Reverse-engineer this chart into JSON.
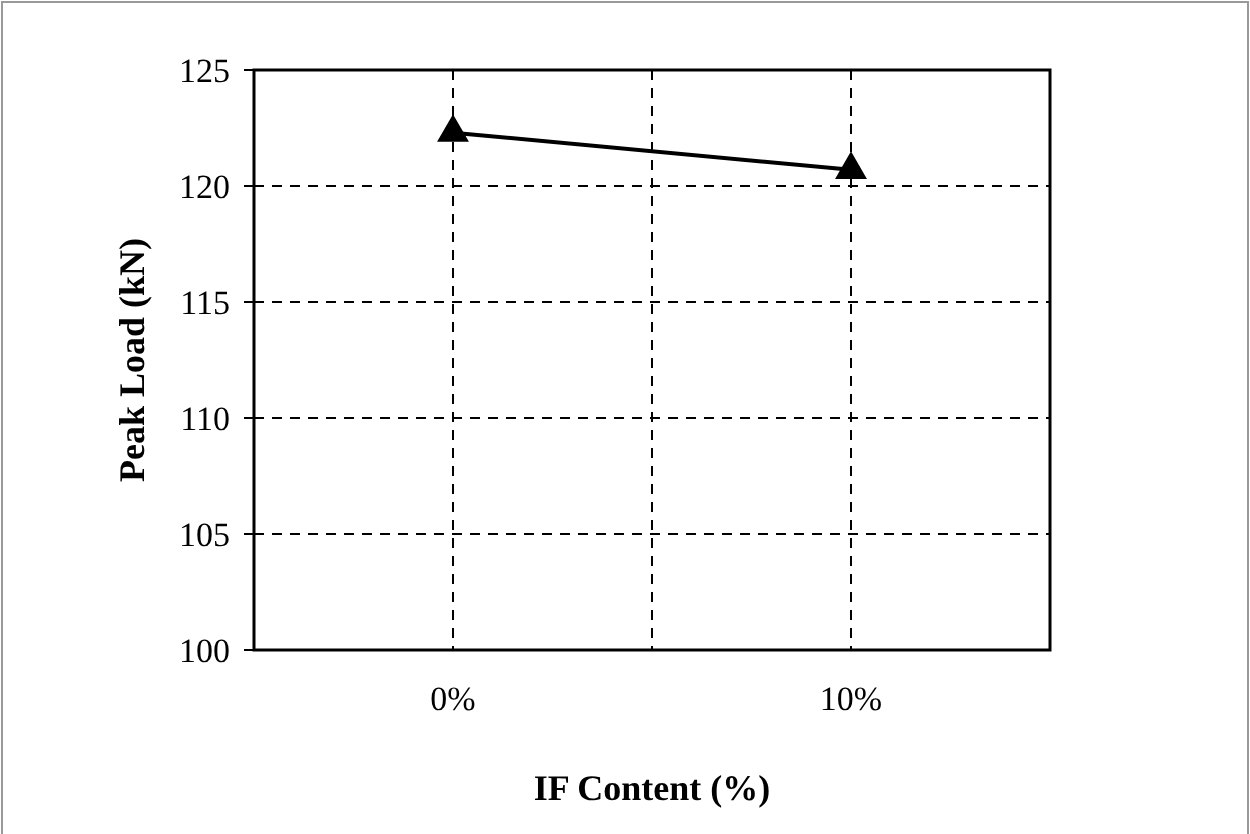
{
  "chart_data": {
    "type": "line",
    "xlabel": "IF Content (%)",
    "ylabel": "Peak Load (kN)",
    "categories": [
      "0%",
      "10%"
    ],
    "series": [
      {
        "color": "#000000",
        "values": [
          122.3,
          120.7
        ]
      }
    ],
    "ylim": [
      100,
      125
    ],
    "yticks": [
      100,
      105,
      110,
      115,
      120,
      125
    ],
    "grid": true,
    "marker": "triangle",
    "line_style": "solid"
  }
}
